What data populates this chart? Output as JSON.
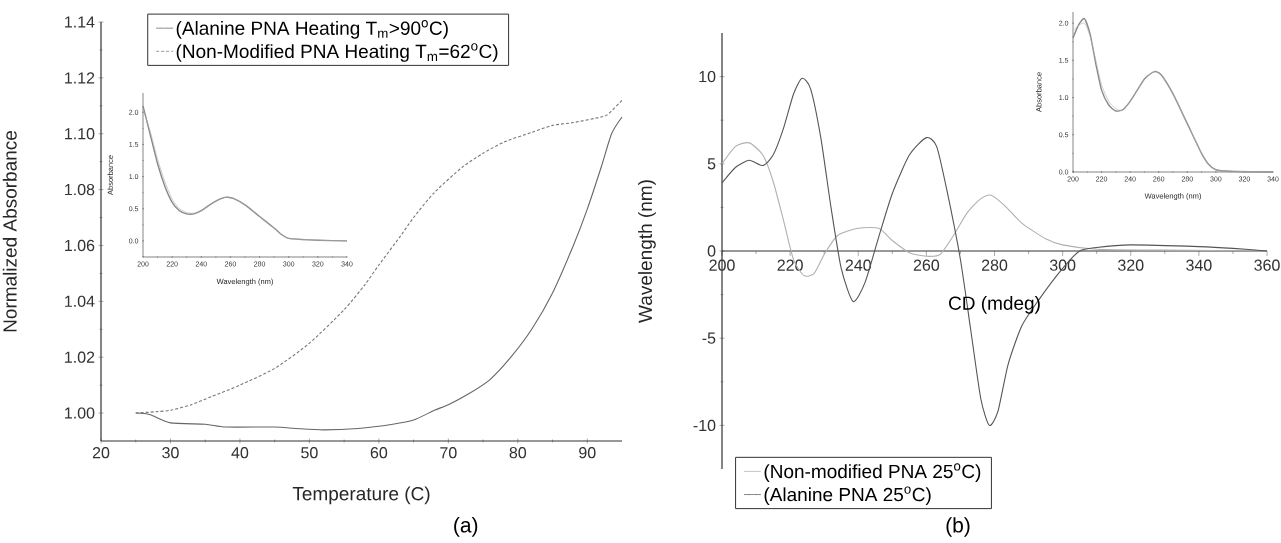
{
  "chart_data": [
    {
      "type": "line",
      "xlabel": "Temperature (C)",
      "ylabel": "Normalized Absorbance",
      "annotations": [
        "(a)"
      ],
      "legend": "top",
      "marker": "none",
      "xlim": [
        20,
        95
      ],
      "xticks": [
        20,
        30,
        40,
        50,
        60,
        70,
        80,
        90
      ],
      "ylim": [
        0.99,
        1.14
      ],
      "yticks": [
        {
          "value": 1.0,
          "label": "1.00"
        },
        {
          "value": 1.02,
          "label": "1.02"
        },
        {
          "value": 1.04,
          "label": "1.04"
        },
        {
          "value": 1.06,
          "label": "1.06"
        },
        {
          "value": 1.08,
          "label": "1.08"
        },
        {
          "value": 1.1,
          "label": "1.10"
        },
        {
          "value": 1.12,
          "label": "1.12"
        },
        {
          "value": 1.14,
          "label": "1.14"
        }
      ],
      "series": [
        {
          "name": "(Alanine PNA Heating T$_{m}$>90$^{o}$C)",
          "color": "#666666",
          "line_style": "solid",
          "x": [
            25,
            27,
            30,
            35,
            38,
            45,
            48,
            52,
            57,
            62,
            65,
            68,
            70,
            73,
            76,
            79,
            82,
            85,
            88,
            90,
            92,
            93.5,
            95
          ],
          "values": [
            1.0,
            0.9995,
            0.9965,
            0.996,
            0.995,
            0.995,
            0.9945,
            0.994,
            0.9945,
            0.996,
            0.9975,
            1.001,
            1.003,
            1.007,
            1.012,
            1.02,
            1.03,
            1.043,
            1.06,
            1.073,
            1.088,
            1.1,
            1.106
          ]
        },
        {
          "name": "(Non-Modified PNA Heating T$_{m}$=62$^{o}$C)",
          "color": "#777777",
          "line_style": "dashed",
          "x": [
            25,
            28,
            30,
            33,
            36,
            40,
            45,
            50,
            55,
            58,
            60,
            63,
            65,
            68,
            72,
            75,
            78,
            82,
            85,
            88,
            92,
            93,
            95
          ],
          "values": [
            1.0,
            1.0005,
            1.001,
            1.003,
            1.006,
            1.01,
            1.016,
            1.025,
            1.037,
            1.046,
            1.053,
            1.063,
            1.07,
            1.079,
            1.088,
            1.093,
            1.097,
            1.1005,
            1.103,
            1.104,
            1.106,
            1.107,
            1.112
          ]
        }
      ]
    },
    {
      "type": "line",
      "xlabel": "Wavelength (nm)",
      "ylabel": "Absorbance",
      "marker": "none",
      "xlim": [
        200,
        340
      ],
      "xticks": [
        200,
        220,
        240,
        260,
        280,
        300,
        320,
        340
      ],
      "ylim": [
        -0.25,
        2.3
      ],
      "yticks": [
        {
          "value": 0,
          "label": "0.0"
        },
        {
          "value": 0.5,
          "label": "0.5"
        },
        {
          "value": 1,
          "label": "1.0"
        },
        {
          "value": 1.5,
          "label": "1.5"
        },
        {
          "value": 2,
          "label": "2.0"
        }
      ],
      "series": [
        {
          "color": "#888888",
          "x": [
            200,
            205,
            210,
            215,
            220,
            225,
            230,
            235,
            240,
            245,
            250,
            255,
            258,
            262,
            270,
            280,
            290,
            295,
            300,
            310,
            320,
            340
          ],
          "values": [
            2.1,
            1.65,
            1.2,
            0.85,
            0.6,
            0.47,
            0.42,
            0.42,
            0.47,
            0.55,
            0.62,
            0.67,
            0.68,
            0.66,
            0.56,
            0.38,
            0.2,
            0.1,
            0.04,
            0.02,
            0.01,
            0.0
          ]
        },
        {
          "color": "#aaaaaa",
          "x": [
            200,
            205,
            210,
            215,
            220,
            225,
            230,
            235,
            240,
            245,
            250,
            255,
            258,
            262,
            270,
            280,
            290,
            295,
            300,
            310,
            320,
            340
          ],
          "values": [
            2.05,
            1.7,
            1.27,
            0.92,
            0.65,
            0.5,
            0.44,
            0.43,
            0.47,
            0.55,
            0.62,
            0.67,
            0.68,
            0.66,
            0.56,
            0.38,
            0.2,
            0.1,
            0.04,
            0.02,
            0.01,
            0.0
          ]
        }
      ]
    },
    {
      "type": "line",
      "xlabel": "CD (mdeg)",
      "ylabel": "Wavelength (nm)",
      "annotations": [
        "(b)"
      ],
      "legend": "bottom left",
      "marker": "none",
      "xlim": [
        200,
        360
      ],
      "xticks": [
        200,
        220,
        240,
        260,
        280,
        300,
        320,
        340,
        360
      ],
      "ylim": [
        -12.5,
        12.5
      ],
      "yticks": [
        -10,
        -5,
        0,
        5,
        10
      ],
      "series": [
        {
          "name": "(Non-modified PNA 25$^{o}$C)",
          "color": "#b0b0b0",
          "line_style": "solid",
          "x": [
            200,
            204,
            208,
            212,
            215,
            218,
            221,
            224,
            227,
            230,
            234,
            240,
            246,
            250,
            255,
            260,
            264,
            268,
            272,
            276,
            279,
            283,
            288,
            295,
            300,
            310,
            330,
            360
          ],
          "values": [
            5.0,
            6.0,
            6.2,
            5.5,
            4,
            1.8,
            -0.5,
            -1.4,
            -1.3,
            -0.2,
            0.9,
            1.3,
            1.3,
            0.6,
            -0.1,
            -0.3,
            -0.2,
            0.9,
            2.2,
            3.0,
            3.2,
            2.6,
            1.6,
            0.7,
            0.35,
            0.1,
            0.05,
            0
          ]
        },
        {
          "name": "(Alanine PNA 25$^{o}$C)",
          "color": "#555555",
          "line_style": "solid",
          "x": [
            200,
            204,
            208,
            212,
            215,
            218,
            221,
            223.5,
            226,
            229,
            232,
            235,
            238.5,
            242,
            246,
            250,
            255,
            260,
            263,
            266,
            270,
            273,
            276,
            278.5,
            281,
            284,
            288,
            293,
            300,
            305,
            310,
            320,
            340,
            350,
            360
          ],
          "values": [
            3.9,
            4.8,
            5.2,
            4.9,
            5.5,
            7.0,
            9.0,
            9.9,
            9.3,
            6.5,
            2.5,
            -1,
            -2.9,
            -1.8,
            0.8,
            3.3,
            5.5,
            6.5,
            6,
            3.5,
            -0.5,
            -4.5,
            -8.5,
            -10,
            -9.2,
            -6.5,
            -4.3,
            -2.8,
            -1,
            0,
            0.2,
            0.35,
            0.25,
            0.15,
            0
          ]
        }
      ]
    },
    {
      "type": "line",
      "xlabel": "Wavelength (nm)",
      "ylabel": "Absorbance",
      "marker": "none",
      "xlim": [
        200,
        340
      ],
      "xticks": [
        200,
        220,
        240,
        260,
        280,
        300,
        320,
        340
      ],
      "ylim": [
        0,
        2.15
      ],
      "yticks": [
        {
          "value": 0,
          "label": "0.0"
        },
        {
          "value": 0.5,
          "label": "0.5"
        },
        {
          "value": 1,
          "label": "1.0"
        },
        {
          "value": 1.5,
          "label": "1.5"
        },
        {
          "value": 2,
          "label": "2.0"
        }
      ],
      "series": [
        {
          "color": "#888888",
          "x": [
            200,
            204,
            208,
            212,
            216,
            220,
            225,
            230,
            235,
            240,
            245,
            250,
            255,
            258,
            262,
            270,
            280,
            290,
            295,
            300,
            310,
            340
          ],
          "values": [
            1.8,
            1.98,
            2.06,
            1.85,
            1.45,
            1.1,
            0.9,
            0.82,
            0.84,
            0.95,
            1.1,
            1.25,
            1.33,
            1.35,
            1.3,
            1.05,
            0.65,
            0.25,
            0.1,
            0.03,
            0.01,
            0.0
          ]
        },
        {
          "color": "#b0b0b0",
          "x": [
            200,
            204,
            208,
            212,
            216,
            220,
            225,
            230,
            235,
            240,
            245,
            250,
            255,
            258,
            262,
            270,
            280,
            290,
            295,
            300,
            310,
            340
          ],
          "values": [
            1.9,
            1.97,
            2.0,
            1.82,
            1.5,
            1.17,
            0.95,
            0.85,
            0.83,
            0.95,
            1.1,
            1.25,
            1.33,
            1.35,
            1.3,
            1.05,
            0.65,
            0.25,
            0.1,
            0.03,
            0.01,
            0.0
          ]
        }
      ]
    }
  ]
}
